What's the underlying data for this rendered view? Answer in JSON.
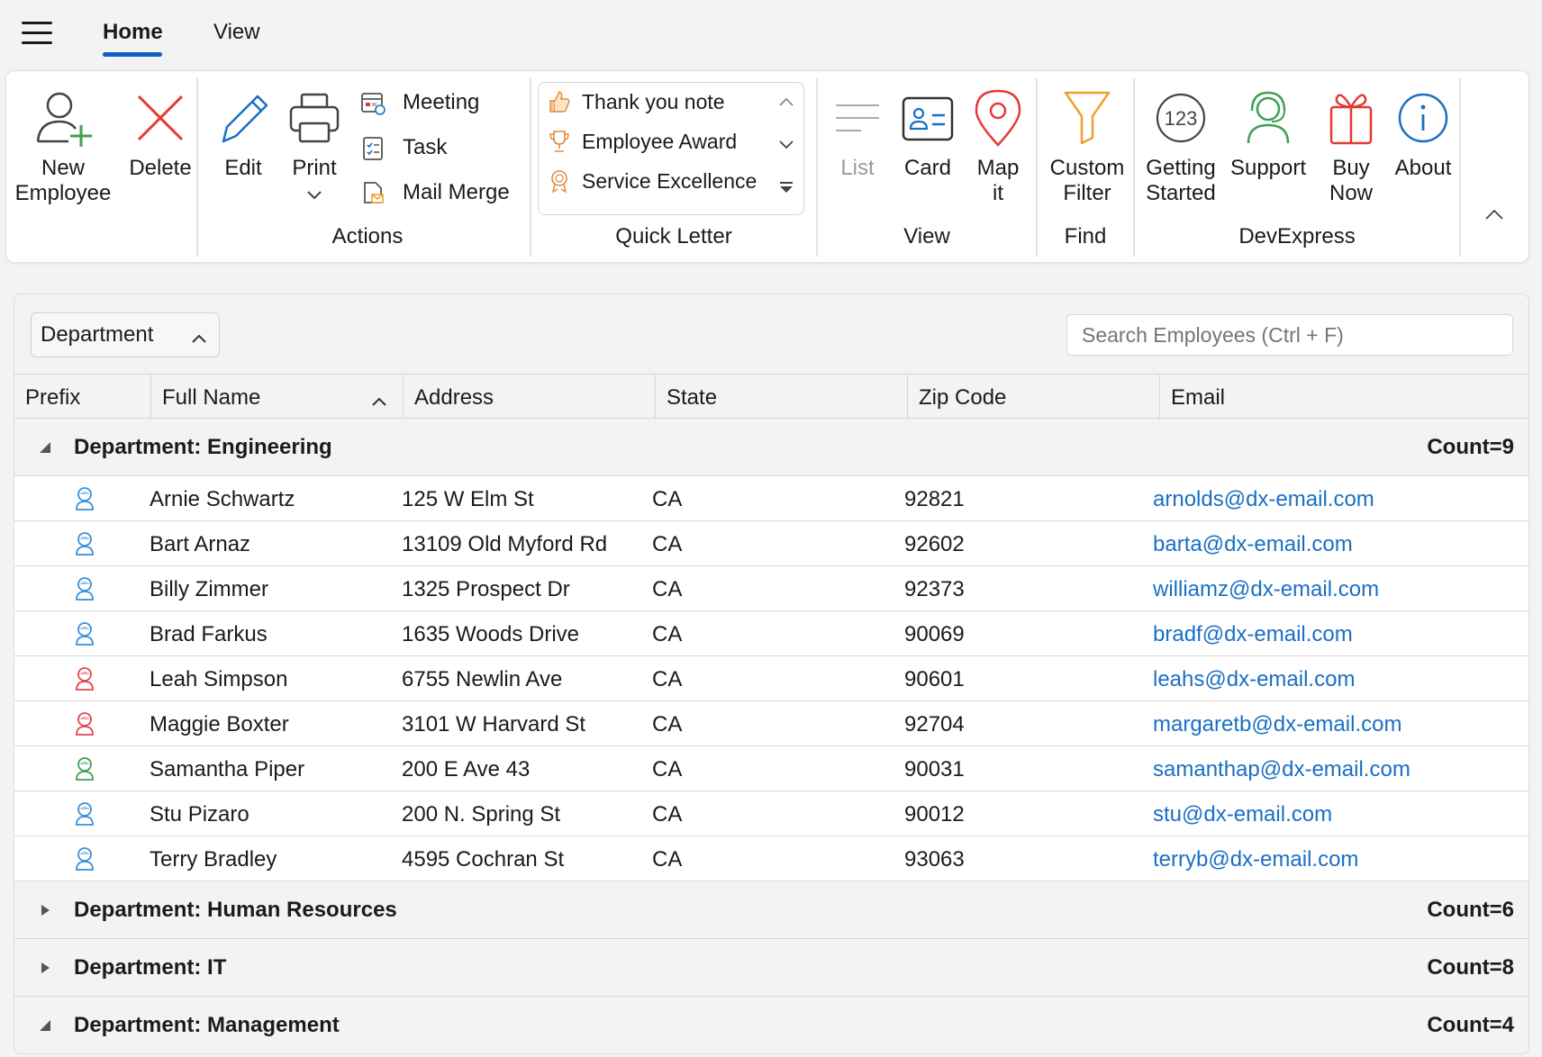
{
  "tabs": [
    {
      "label": "Home",
      "active": true
    },
    {
      "label": "View",
      "active": false
    }
  ],
  "ribbon": {
    "buttons": {
      "new_employee": {
        "line1": "New",
        "line2": "Employee"
      },
      "delete": "Delete",
      "edit": "Edit",
      "print": "Print",
      "list": "List",
      "card": "Card",
      "map": {
        "line1": "Map",
        "line2": "it"
      },
      "custom_filter": {
        "line1": "Custom",
        "line2": "Filter"
      },
      "getting_started": {
        "line1": "Getting",
        "line2": "Started",
        "badge": "123"
      },
      "support": "Support",
      "buy_now": {
        "line1": "Buy",
        "line2": "Now"
      },
      "about": "About"
    },
    "actions_small": [
      "Meeting",
      "Task",
      "Mail Merge"
    ],
    "quick_letter_items": [
      "Thank you note",
      "Employee Award",
      "Service Excellence"
    ],
    "groups": {
      "actions": "Actions",
      "quick_letter": "Quick Letter",
      "view": "View",
      "find": "Find",
      "devexpress": "DevExpress"
    }
  },
  "grid": {
    "group_chip": "Department",
    "search_placeholder": "Search Employees (Ctrl + F)",
    "columns": [
      "Prefix",
      "Full Name",
      "Address",
      "State",
      "Zip Code",
      "Email"
    ],
    "groups": [
      {
        "title": "Department: Engineering",
        "count": "Count=9",
        "expanded": true,
        "rows": [
          {
            "prefix": "male",
            "name": "Arnie Schwartz",
            "address": "125 W Elm St",
            "state": "CA",
            "zip": "92821",
            "email": "arnolds@dx-email.com"
          },
          {
            "prefix": "male",
            "name": "Bart Arnaz",
            "address": "13109 Old Myford Rd",
            "state": "CA",
            "zip": "92602",
            "email": "barta@dx-email.com"
          },
          {
            "prefix": "male",
            "name": "Billy Zimmer",
            "address": "1325 Prospect Dr",
            "state": "CA",
            "zip": "92373",
            "email": "williamz@dx-email.com"
          },
          {
            "prefix": "male",
            "name": "Brad Farkus",
            "address": "1635 Woods Drive",
            "state": "CA",
            "zip": "90069",
            "email": "bradf@dx-email.com"
          },
          {
            "prefix": "female",
            "name": "Leah Simpson",
            "address": "6755 Newlin Ave",
            "state": "CA",
            "zip": "90601",
            "email": "leahs@dx-email.com"
          },
          {
            "prefix": "female",
            "name": "Maggie Boxter",
            "address": "3101 W Harvard St",
            "state": "CA",
            "zip": "92704",
            "email": "margaretb@dx-email.com"
          },
          {
            "prefix": "other",
            "name": "Samantha Piper",
            "address": "200 E Ave 43",
            "state": "CA",
            "zip": "90031",
            "email": "samanthap@dx-email.com"
          },
          {
            "prefix": "male",
            "name": "Stu Pizaro",
            "address": "200 N. Spring St",
            "state": "CA",
            "zip": "90012",
            "email": "stu@dx-email.com"
          },
          {
            "prefix": "male",
            "name": "Terry Bradley",
            "address": "4595 Cochran St",
            "state": "CA",
            "zip": "93063",
            "email": "terryb@dx-email.com"
          }
        ]
      },
      {
        "title": "Department: Human Resources",
        "count": "Count=6",
        "expanded": false,
        "rows": []
      },
      {
        "title": "Department: IT",
        "count": "Count=8",
        "expanded": false,
        "rows": []
      },
      {
        "title": "Department: Management",
        "count": "Count=4",
        "expanded": true,
        "rows": []
      }
    ]
  },
  "colors": {
    "accent": "#0f5fbf",
    "link": "#1a6fc4",
    "male": "#3a8fd9",
    "female": "#e0484e",
    "other": "#3fa052",
    "delete": "#e53935",
    "filter": "#f0a030"
  }
}
